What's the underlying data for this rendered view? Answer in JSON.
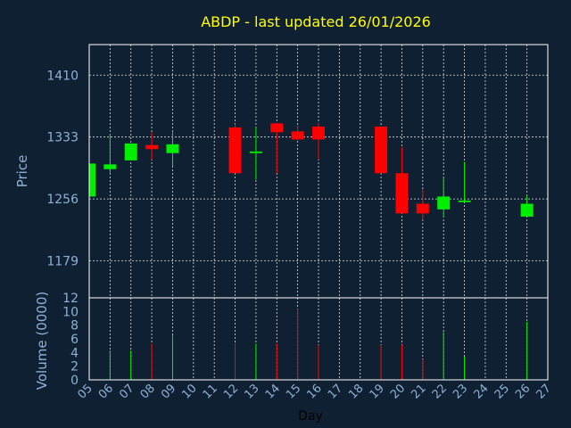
{
  "chart_data": {
    "type": "candlestick",
    "title": "ABDP - last updated 26/01/2026",
    "colors": {
      "background": "#102033",
      "title": "#ffff00",
      "axis_text": "#8fb1d6",
      "up": "#00ee00",
      "down": "#ff0000",
      "grid": "#ffffff",
      "frame": "#ffffff"
    },
    "price_panel": {
      "ylabel": "Price",
      "ylim": [
        1133,
        1448
      ],
      "yticks": [
        1179,
        1256,
        1333,
        1410
      ]
    },
    "volume_panel": {
      "ylabel": "Volume (0000)",
      "ylim": [
        0,
        12
      ],
      "yticks": [
        0,
        2,
        4,
        6,
        8,
        10,
        12
      ]
    },
    "xlabel": "Day",
    "x_categories": [
      "05",
      "06",
      "07",
      "08",
      "09",
      "10",
      "11",
      "12",
      "13",
      "14",
      "15",
      "16",
      "17",
      "18",
      "19",
      "20",
      "21",
      "22",
      "23",
      "24",
      "25",
      "26",
      "27"
    ],
    "grid": true,
    "candles": [
      {
        "day": "05",
        "open": 1259,
        "high": 1300,
        "low": 1259,
        "close": 1300,
        "volume": 0
      },
      {
        "day": "06",
        "open": 1293,
        "high": 1337,
        "low": 1288,
        "close": 1299,
        "volume": 4.3
      },
      {
        "day": "07",
        "open": 1304,
        "high": 1325,
        "low": 1304,
        "close": 1325,
        "volume": 4.3
      },
      {
        "day": "08",
        "open": 1323,
        "high": 1339,
        "low": 1305,
        "close": 1318,
        "volume": 5.3
      },
      {
        "day": "09",
        "open": 1313,
        "high": 1339,
        "low": 1297,
        "close": 1324,
        "volume": 6.5
      },
      {
        "day": "12",
        "open": 1345,
        "high": 1349,
        "low": 1288,
        "close": 1288,
        "volume": 5.4
      },
      {
        "day": "13",
        "open": 1313,
        "high": 1345,
        "low": 1280,
        "close": 1315,
        "volume": 5.3
      },
      {
        "day": "14",
        "open": 1350,
        "high": 1350,
        "low": 1288,
        "close": 1339,
        "volume": 5.3
      },
      {
        "day": "15",
        "open": 1340,
        "high": 1347,
        "low": 1329,
        "close": 1330,
        "volume": 10.4
      },
      {
        "day": "16",
        "open": 1346,
        "high": 1350,
        "low": 1305,
        "close": 1330,
        "volume": 5.1
      },
      {
        "day": "19",
        "open": 1346,
        "high": 1346,
        "low": 1288,
        "close": 1288,
        "volume": 5.1
      },
      {
        "day": "20",
        "open": 1288,
        "high": 1320,
        "low": 1238,
        "close": 1238,
        "volume": 5.1
      },
      {
        "day": "21",
        "open": 1250,
        "high": 1268,
        "low": 1230,
        "close": 1238,
        "volume": 3.0
      },
      {
        "day": "22",
        "open": 1243,
        "high": 1282,
        "low": 1233,
        "close": 1259,
        "volume": 7.0
      },
      {
        "day": "23",
        "open": 1252,
        "high": 1302,
        "low": 1252,
        "close": 1254,
        "volume": 3.4
      },
      {
        "day": "26",
        "open": 1234,
        "high": 1260,
        "low": 1234,
        "close": 1250,
        "volume": 8.5
      }
    ]
  }
}
